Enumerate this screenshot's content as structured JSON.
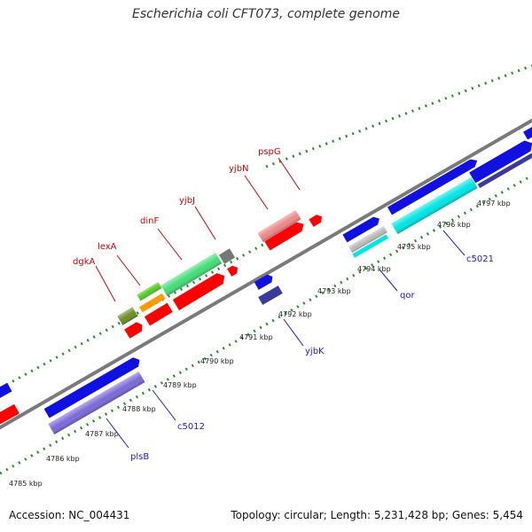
{
  "title": "Escherichia coli CFT073, complete genome",
  "footer": {
    "accession": "Accession: NC_004431",
    "summary": "Topology: circular; Length: 5,231,428 bp; Genes: 5,454"
  },
  "colors": {
    "backbone": "#7a7a7a",
    "tick": "#2e8b2e",
    "red_label": "#cc0000",
    "blue_label": "#1a1acc",
    "gene_red": "#ff0000",
    "gene_blue": "#1010e0",
    "gene_lavender": "#7b68d8",
    "gene_green": "#44dd77",
    "gene_olive": "#6b8e23",
    "gene_orange": "#ff9900",
    "gene_pink": "#ee8888",
    "gene_cyan": "#00e5e5",
    "gene_grey": "#888888",
    "gene_navy": "#3a3a9a"
  },
  "kbp_labels": [
    "4785 kbp",
    "4786 kbp",
    "4787 kbp",
    "4788 kbp",
    "4789 kbp",
    "4790 kbp",
    "4791 kbp",
    "4792 kbp",
    "4793 kbp",
    "4794 kbp",
    "4795 kbp",
    "4796 kbp",
    "4797 kbp"
  ],
  "forward_gene_labels": [
    "dgkA",
    "lexA",
    "dinF",
    "yjbJ",
    "yjbN",
    "pspG"
  ],
  "reverse_gene_labels": [
    "plsB",
    "c5012",
    "yjbK",
    "qor",
    "c5021"
  ]
}
